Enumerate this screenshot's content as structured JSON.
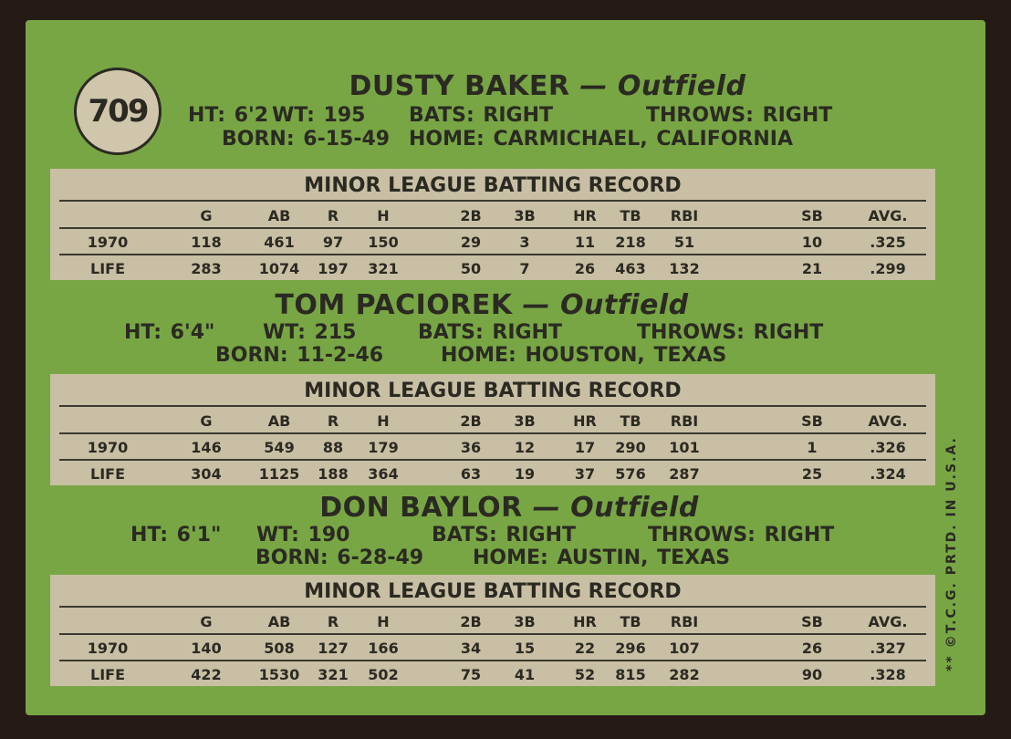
{
  "card_number": "709",
  "columns": [
    "G",
    "AB",
    "R",
    "H",
    "2B",
    "3B",
    "HR",
    "TB",
    "RBI",
    "SB",
    "AVG."
  ],
  "players": [
    {
      "name": "DUSTY BAKER",
      "position": "— Outfield",
      "ht": "HT: 6'2",
      "wt": "WT: 195",
      "bats": "BATS: RIGHT",
      "throws": "THROWS: RIGHT",
      "born": "BORN: 6-15-49",
      "home": "HOME: CARMICHAEL, CALIFORNIA",
      "record_title": "MINOR LEAGUE BATTING RECORD",
      "rows": [
        {
          "label": "1970",
          "values": [
            "118",
            "461",
            "97",
            "150",
            "29",
            "3",
            "11",
            "218",
            "51",
            "10",
            ".325"
          ]
        },
        {
          "label": "LIFE",
          "values": [
            "283",
            "1074",
            "197",
            "321",
            "50",
            "7",
            "26",
            "463",
            "132",
            "21",
            ".299"
          ]
        }
      ]
    },
    {
      "name": "TOM PACIOREK",
      "position": "— Outfield",
      "ht": "HT: 6'4\"",
      "wt": "WT: 215",
      "bats": "BATS: RIGHT",
      "throws": "THROWS: RIGHT",
      "born": "BORN: 11-2-46",
      "home": "HOME: HOUSTON, TEXAS",
      "record_title": "MINOR LEAGUE BATTING RECORD",
      "rows": [
        {
          "label": "1970",
          "values": [
            "146",
            "549",
            "88",
            "179",
            "36",
            "12",
            "17",
            "290",
            "101",
            "1",
            ".326"
          ]
        },
        {
          "label": "LIFE",
          "values": [
            "304",
            "1125",
            "188",
            "364",
            "63",
            "19",
            "37",
            "576",
            "287",
            "25",
            ".324"
          ]
        }
      ]
    },
    {
      "name": "DON BAYLOR",
      "position": "— Outfield",
      "ht": "HT: 6'1\"",
      "wt": "WT: 190",
      "bats": "BATS: RIGHT",
      "throws": "THROWS: RIGHT",
      "born": "BORN: 6-28-49",
      "home": "HOME: AUSTIN, TEXAS",
      "record_title": "MINOR LEAGUE BATTING RECORD",
      "rows": [
        {
          "label": "1970",
          "values": [
            "140",
            "508",
            "127",
            "166",
            "34",
            "15",
            "22",
            "296",
            "107",
            "26",
            ".327"
          ]
        },
        {
          "label": "LIFE",
          "values": [
            "422",
            "1530",
            "321",
            "502",
            "75",
            "41",
            "52",
            "815",
            "282",
            "90",
            ".328"
          ]
        }
      ]
    }
  ],
  "copyright": "** ©T.C.G. PRTD. IN U.S.A.",
  "colors": {
    "card_green": "#78a645",
    "panel_tan": "#c8bfa4",
    "ink": "#2b2a22",
    "border": "#261a17"
  }
}
